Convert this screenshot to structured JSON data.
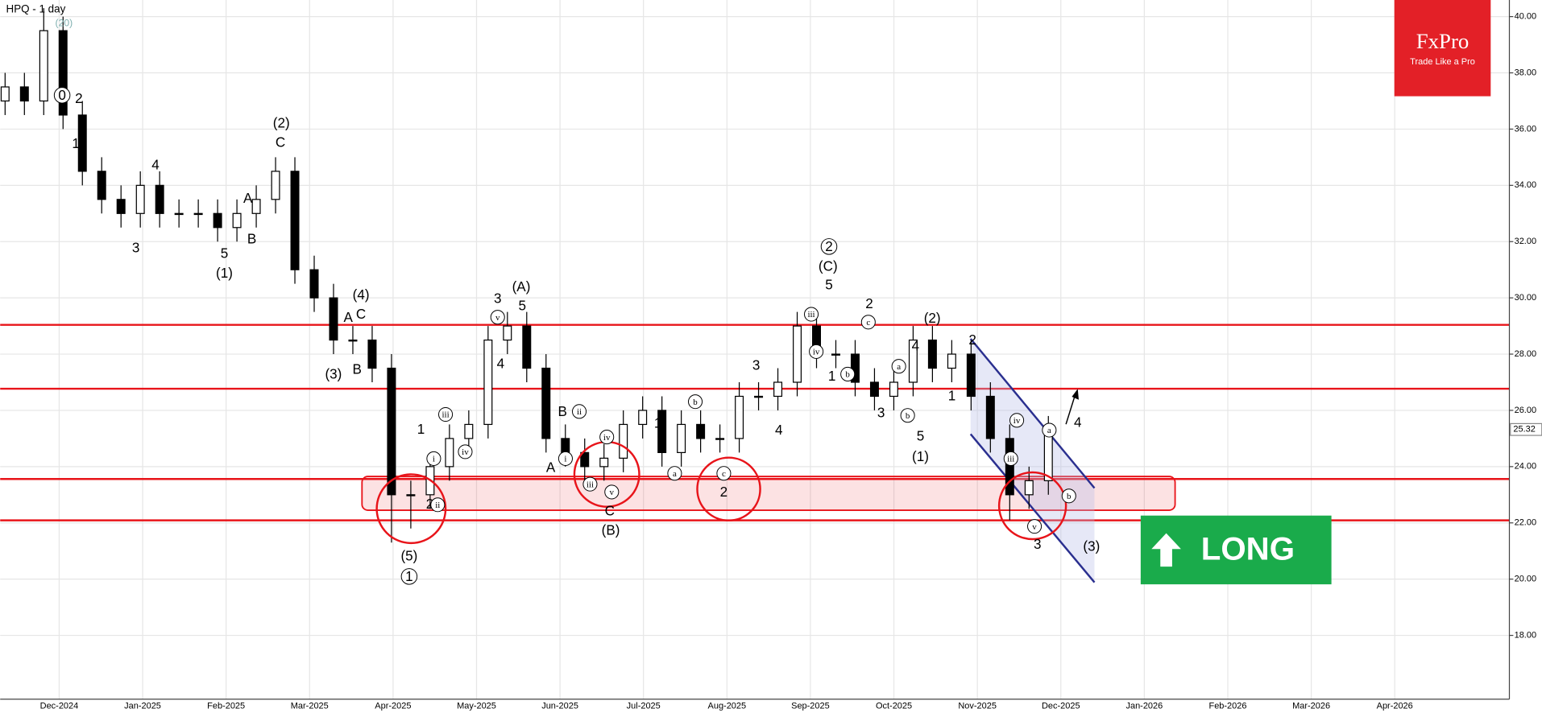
{
  "chart_data": {
    "type": "candlestick",
    "title": "HPQ - 1 day",
    "indicator": "(20)",
    "brand": "FxPro",
    "tagline": "Trade Like a Pro",
    "signal": "LONG",
    "months": [
      "Dec-2024",
      "Jan-2025",
      "Feb-2025",
      "Mar-2025",
      "Apr-2025",
      "May-2025",
      "Jun-2025",
      "Jul-2025",
      "Aug-2025",
      "Sep-2025",
      "Oct-2025",
      "Nov-2025",
      "Dec-2025",
      "Jan-2026",
      "Feb-2026",
      "Mar-2026",
      "Apr-2026"
    ],
    "ylim": [
      15.73,
      40.59
    ],
    "yticks": [
      {
        "value": 18,
        "label": "18.00"
      },
      {
        "value": 20,
        "label": "20.00"
      },
      {
        "value": 22,
        "label": "22.00"
      },
      {
        "value": 24,
        "label": "24.00"
      },
      {
        "value": 26,
        "label": "26.00"
      },
      {
        "value": 28,
        "label": "28.00"
      },
      {
        "value": 30,
        "label": "30.00"
      },
      {
        "value": 32,
        "label": "32.00"
      },
      {
        "value": 34,
        "label": "34.00"
      },
      {
        "value": 36,
        "label": "36.00"
      },
      {
        "value": 38,
        "label": "38.00"
      },
      {
        "value": 40,
        "label": "40.00"
      }
    ],
    "last_price": 25.32,
    "levels": [
      29.04,
      26.77,
      23.56,
      22.09
    ],
    "level_color": "#e8141a",
    "zone": [
      22.45,
      23.65
    ],
    "open": [
      37,
      37.5,
      37,
      39.5,
      36.5,
      34.5,
      33.5,
      33,
      34,
      33,
      33,
      33,
      32.5,
      33,
      33.5,
      34.5,
      31,
      30,
      28.5,
      28.5,
      27.5,
      23,
      23,
      24,
      25,
      25.5,
      28.5,
      29,
      27.5,
      25,
      24.5,
      24,
      24.3,
      25.5,
      26,
      24.5,
      25.5,
      25,
      25,
      26.5,
      26.5,
      27,
      29,
      28,
      28,
      27,
      26.5,
      27,
      28.5,
      27.5,
      28,
      26.5,
      25,
      23,
      23.5
    ],
    "high": [
      38,
      38,
      40.3,
      40,
      37,
      35,
      34,
      34.5,
      34.5,
      33.5,
      33.5,
      33.5,
      33.5,
      34,
      35,
      35,
      31.5,
      30.5,
      29,
      29,
      28,
      23.5,
      24.5,
      25.5,
      26,
      29,
      29.5,
      29.5,
      28,
      25.5,
      25,
      24.8,
      26,
      26.5,
      26.5,
      26,
      26,
      25.5,
      27,
      27,
      27.5,
      29.5,
      29.5,
      28.5,
      28.5,
      27.5,
      27.5,
      29,
      29,
      28.5,
      28.5,
      27,
      25.5,
      24,
      25.8
    ],
    "low": [
      36.5,
      36.5,
      36.5,
      36,
      34,
      33,
      32.5,
      32.5,
      32.5,
      32.5,
      32.5,
      32,
      32,
      32.5,
      33,
      30.5,
      29.5,
      28,
      28,
      27,
      21.3,
      21.8,
      22.5,
      23.5,
      24.5,
      25,
      28,
      27,
      24.5,
      24,
      23.5,
      23.5,
      23.8,
      25,
      24,
      24,
      24.5,
      24.5,
      24.5,
      26,
      26,
      26.5,
      27.5,
      27.5,
      26.5,
      26,
      26,
      26.5,
      27,
      27,
      26,
      24.5,
      22.1,
      22.5,
      23
    ],
    "close": [
      37.5,
      37,
      39.5,
      36.5,
      34.5,
      33.5,
      33,
      34,
      33,
      33,
      33,
      32.5,
      33,
      33.5,
      34.5,
      31,
      30,
      28.5,
      28.5,
      27.5,
      23,
      23,
      24,
      25,
      25.5,
      28.5,
      29,
      27.5,
      25,
      24.5,
      24,
      24.3,
      25.5,
      26,
      24.5,
      25.5,
      25,
      25,
      26.5,
      26.5,
      27,
      29,
      28,
      28,
      27,
      26.5,
      27,
      28.5,
      27.5,
      28,
      26.5,
      25,
      23,
      23.5,
      25.3
    ],
    "waves": [
      "0",
      "2",
      "1",
      "4",
      "3",
      "A",
      "B",
      "5",
      "(1)",
      "(2)",
      "C",
      "(4)",
      "A",
      "C",
      "(3)",
      "B",
      "3",
      "(A)",
      "5",
      "4",
      "1",
      "2",
      "(5)",
      "1",
      "B",
      "A",
      "C",
      "(B)",
      "2",
      "1",
      "3",
      "4",
      "2",
      "(C)",
      "5",
      "2",
      "1",
      "(2)",
      "4",
      "3",
      "5",
      "(1)",
      "1",
      "2",
      "4",
      "3",
      "(3)",
      "iii",
      "iv",
      "v",
      "ii",
      "iv",
      "v",
      "iii",
      "c",
      "a",
      "b",
      "iii",
      "iv",
      "b",
      "c",
      "a",
      "b",
      "iv",
      "iii",
      "v",
      "a",
      "b",
      "i",
      "i",
      "ii"
    ]
  }
}
